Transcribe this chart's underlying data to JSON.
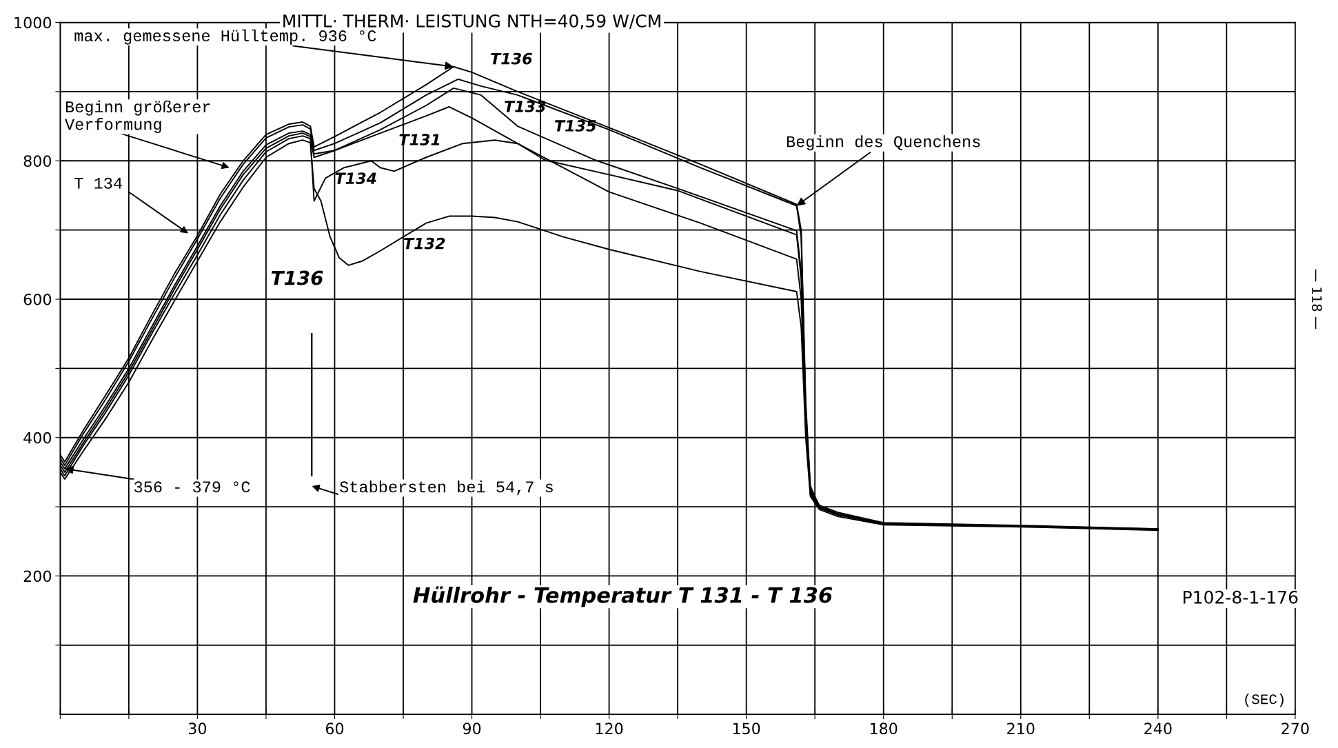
{
  "chart_data": {
    "type": "line",
    "title": "MITTL· THERM· LEISTUNG NTH=40,59 W/CM",
    "xlabel": "(SEC)",
    "xlim": [
      0,
      270
    ],
    "ylim": [
      0,
      1000
    ],
    "xticks": [
      {
        "value": 0,
        "label": null
      },
      {
        "value": 15,
        "label": null
      },
      30,
      {
        "value": 45,
        "label": null
      },
      60,
      {
        "value": 75,
        "label": null
      },
      90,
      {
        "value": 105,
        "label": null
      },
      120,
      {
        "value": 135,
        "label": null
      },
      150,
      {
        "value": 165,
        "label": null
      },
      180,
      {
        "value": 195,
        "label": null
      },
      210,
      {
        "value": 225,
        "label": null
      },
      240,
      {
        "value": 255,
        "label": null
      },
      270
    ],
    "yticks": [
      {
        "value": 100,
        "label": null
      },
      200,
      {
        "value": 300,
        "label": null
      },
      400,
      {
        "value": 500,
        "label": null
      },
      600,
      {
        "value": 700,
        "label": null
      },
      800,
      {
        "value": 900,
        "label": null
      },
      1000
    ],
    "grid": true,
    "marker": "none",
    "line_style": "solid",
    "series": [
      {
        "name": "T136",
        "color": "#000000",
        "x": [
          0,
          1,
          5,
          10,
          15,
          20,
          25,
          30,
          35,
          40,
          45,
          50,
          53,
          54.7,
          55.5,
          60,
          70,
          80,
          86,
          90,
          100,
          120,
          140,
          161,
          162,
          163,
          164,
          166,
          170,
          180,
          210,
          240
        ],
        "values": [
          375,
          365,
          410,
          462,
          515,
          577,
          637,
          692,
          752,
          800,
          838,
          853,
          856,
          850,
          820,
          835,
          870,
          910,
          936,
          928,
          900,
          848,
          795,
          737,
          700,
          450,
          330,
          300,
          290,
          276,
          272,
          268
        ]
      },
      {
        "name": "T135",
        "color": "#000000",
        "x": [
          0,
          1,
          5,
          10,
          15,
          20,
          25,
          30,
          35,
          40,
          45,
          50,
          53,
          54.7,
          55.5,
          60,
          70,
          80,
          87,
          92,
          100,
          120,
          140,
          161,
          162,
          163,
          164,
          166,
          170,
          180,
          210,
          240
        ],
        "values": [
          370,
          360,
          405,
          456,
          510,
          571,
          631,
          687,
          746,
          795,
          833,
          849,
          852,
          846,
          815,
          825,
          855,
          895,
          918,
          908,
          895,
          845,
          790,
          735,
          690,
          440,
          325,
          302,
          292,
          277,
          273,
          268
        ]
      },
      {
        "name": "T134",
        "color": "#000000",
        "x": [
          0,
          1,
          5,
          10,
          15,
          20,
          25,
          30,
          35,
          40,
          45,
          50,
          53,
          54.7,
          55.5,
          58,
          62,
          68,
          70,
          73,
          80,
          88,
          95,
          100,
          110,
          120,
          140,
          161,
          162,
          163,
          164,
          166,
          170,
          180,
          210,
          240
        ],
        "values": [
          355,
          345,
          388,
          437,
          490,
          550,
          608,
          664,
          722,
          772,
          813,
          832,
          836,
          832,
          742,
          775,
          790,
          800,
          790,
          785,
          805,
          825,
          830,
          825,
          790,
          755,
          710,
          658,
          600,
          420,
          320,
          298,
          288,
          275,
          272,
          267
        ]
      },
      {
        "name": "T133",
        "color": "#000000",
        "x": [
          0,
          1,
          5,
          10,
          15,
          20,
          25,
          30,
          35,
          40,
          45,
          50,
          53,
          54.7,
          55.5,
          60,
          70,
          80,
          86,
          92,
          100,
          117,
          135,
          161,
          162,
          163,
          164,
          166,
          170,
          180,
          210,
          240
        ],
        "values": [
          365,
          355,
          397,
          447,
          500,
          560,
          620,
          677,
          735,
          785,
          823,
          840,
          843,
          838,
          810,
          815,
          845,
          880,
          905,
          895,
          850,
          801,
          760,
          699,
          640,
          430,
          322,
          300,
          290,
          276,
          272,
          267
        ]
      },
      {
        "name": "T132",
        "color": "#000000",
        "x": [
          0,
          1,
          5,
          10,
          15,
          20,
          25,
          30,
          35,
          40,
          45,
          50,
          53,
          54.7,
          55.5,
          57,
          59,
          61,
          63,
          66,
          70,
          75,
          80,
          85,
          90,
          95,
          100,
          110,
          120,
          140,
          161,
          162,
          163,
          164,
          166,
          170,
          180,
          210,
          240
        ],
        "values": [
          350,
          340,
          380,
          428,
          480,
          540,
          598,
          655,
          712,
          762,
          805,
          825,
          830,
          826,
          760,
          742,
          690,
          660,
          649,
          655,
          670,
          690,
          710,
          720,
          720,
          718,
          712,
          690,
          672,
          640,
          611,
          560,
          400,
          315,
          296,
          286,
          274,
          271,
          266
        ]
      },
      {
        "name": "T131",
        "color": "#000000",
        "x": [
          0,
          1,
          5,
          10,
          15,
          20,
          25,
          30,
          35,
          40,
          45,
          50,
          53,
          54.7,
          55.5,
          60,
          70,
          80,
          85,
          90,
          100,
          106,
          120,
          135,
          161,
          162,
          163,
          164,
          166,
          170,
          180,
          210,
          240
        ],
        "values": [
          360,
          350,
          392,
          442,
          495,
          555,
          615,
          672,
          730,
          780,
          818,
          836,
          840,
          835,
          805,
          815,
          840,
          865,
          878,
          862,
          825,
          801,
          780,
          757,
          693,
          630,
          425,
          318,
          299,
          289,
          275,
          272,
          267
        ]
      }
    ],
    "annotations": [
      {
        "text": "max. gemessene Hülltemp. 936 °C",
        "x": 86,
        "y": 936
      },
      "Beginn größerer\nVerformung",
      "T 134",
      "T136",
      {
        "text": "356 - 379 °C",
        "x": 1,
        "y": 355
      },
      "Stabbersten bei 54,7 s",
      {
        "text": "Beginn des Quenchens",
        "x": 161,
        "y": 735
      },
      "Hüllrohr - Temperatur T 131 - T 136",
      "P102-8-1-176",
      "— 118 —"
    ]
  }
}
